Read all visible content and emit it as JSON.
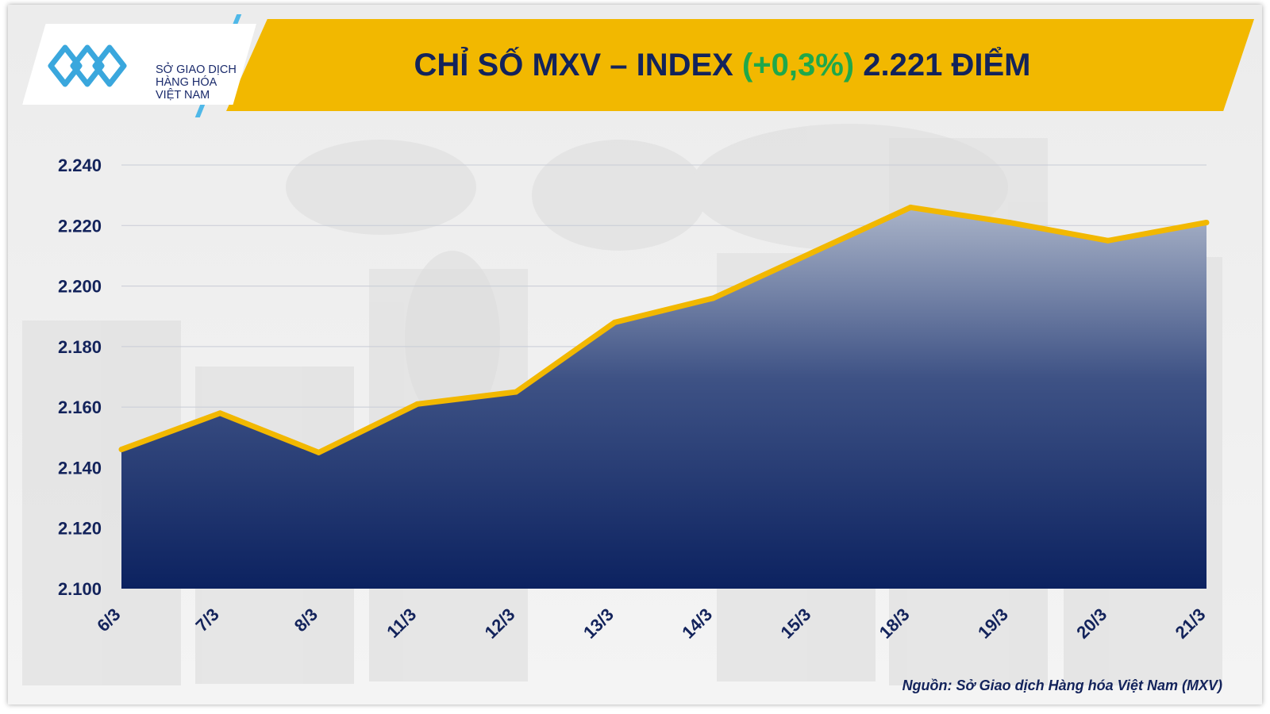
{
  "header": {
    "logo_lines": [
      "SỞ GIAO DỊCH",
      "HÀNG HÓA",
      "VIỆT NAM"
    ],
    "title_prefix": "CHỈ SỐ MXV – INDEX ",
    "title_change": "(+0,3%)",
    "title_suffix": " 2.221 ĐIỂM",
    "colors": {
      "banner": "#f2b800",
      "title": "#13235b",
      "change": "#1fa84a",
      "logo_accent": "#4fb8e8"
    }
  },
  "chart_data": {
    "type": "area",
    "title": "CHỈ SỐ MXV – INDEX (+0,3%) 2.221 ĐIỂM",
    "categories": [
      "6/3",
      "7/3",
      "8/3",
      "11/3",
      "12/3",
      "13/3",
      "14/3",
      "15/3",
      "18/3",
      "19/3",
      "20/3",
      "21/3"
    ],
    "series": [
      {
        "values": [
          2146,
          2158,
          2145,
          2161,
          2165,
          2188,
          2196,
          2211,
          2226,
          2221,
          2215,
          2221
        ]
      }
    ],
    "ylim": [
      2100,
      2240
    ],
    "yticks": [
      2100,
      2120,
      2140,
      2160,
      2180,
      2200,
      2220,
      2240
    ],
    "ytick_labels": [
      "2.100",
      "2.120",
      "2.140",
      "2.160",
      "2.180",
      "2.200",
      "2.220",
      "2.240"
    ],
    "grid": true,
    "line_color": "#f2b800",
    "fill_top_color": "#a9b3c8",
    "fill_bottom_color": "#0c2260"
  },
  "footer": {
    "source": "Nguồn: Sở Giao dịch Hàng hóa Việt Nam (MXV)"
  }
}
